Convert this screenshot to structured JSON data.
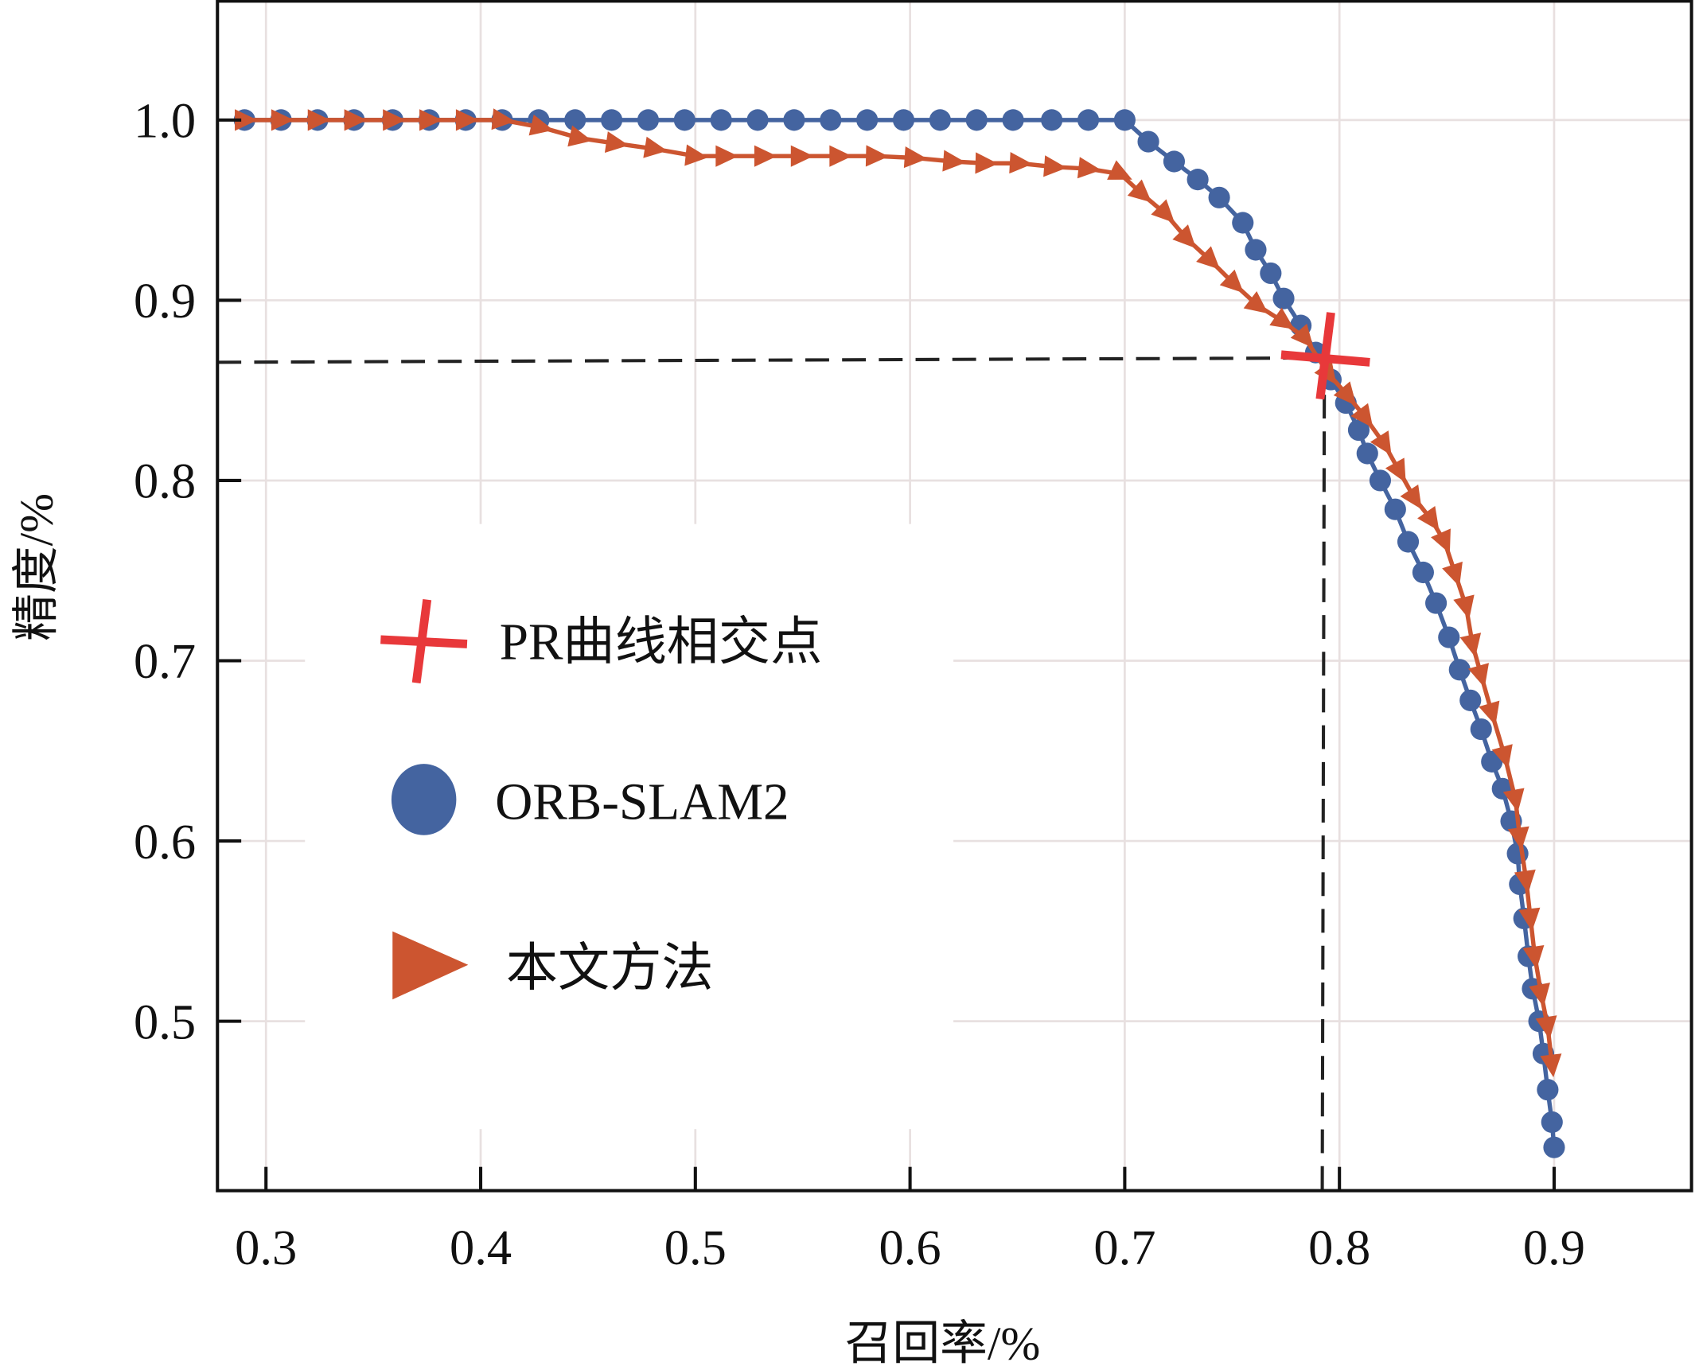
{
  "chart_data": {
    "type": "line",
    "title": "",
    "xlabel": "召回率/%",
    "ylabel": "精度/%",
    "xlim": [
      0.2774,
      0.964
    ],
    "ylim": [
      0.406,
      1.066
    ],
    "xticks": [
      0.3,
      0.4,
      0.5,
      0.6,
      0.7,
      0.8,
      0.9
    ],
    "xtick_labels": [
      "0.3",
      "0.4",
      "0.5",
      "0.6",
      "0.7",
      "0.8",
      "0.9"
    ],
    "yticks": [
      0.5,
      0.6,
      0.7,
      0.8,
      0.9,
      1.0
    ],
    "ytick_labels": [
      "0.5",
      "0.6",
      "0.7",
      "0.8",
      "0.9",
      "1.0"
    ],
    "grid": true,
    "legend_position": "center-left",
    "legend": [
      "PR曲线相交点",
      "ORB-SLAM2",
      "本文方法"
    ],
    "colors": {
      "intersection": "#e8383a",
      "orb": "#4464a0",
      "ours": "#cc5530",
      "dash": "#222222",
      "grid": "#e8e0e0"
    },
    "intersection": {
      "x": 0.793,
      "y": 0.868
    },
    "series": [
      {
        "name": "ORB-SLAM2",
        "marker": "circle",
        "x": [
          0.29,
          0.307,
          0.324,
          0.341,
          0.359,
          0.376,
          0.393,
          0.41,
          0.427,
          0.444,
          0.461,
          0.478,
          0.495,
          0.512,
          0.529,
          0.546,
          0.563,
          0.58,
          0.597,
          0.614,
          0.631,
          0.648,
          0.666,
          0.683,
          0.7,
          0.711,
          0.723,
          0.734,
          0.744,
          0.755,
          0.761,
          0.768,
          0.774,
          0.782,
          0.789,
          0.796,
          0.803,
          0.809,
          0.813,
          0.819,
          0.826,
          0.832,
          0.839,
          0.845,
          0.851,
          0.856,
          0.861,
          0.866,
          0.871,
          0.876,
          0.88,
          0.883,
          0.884,
          0.886,
          0.888,
          0.89,
          0.893,
          0.895,
          0.897,
          0.899,
          0.9
        ],
        "y": [
          1,
          1,
          1,
          1,
          1,
          1,
          1,
          1,
          1,
          1,
          1,
          1,
          1,
          1,
          1,
          1,
          1,
          1,
          1,
          1,
          1,
          1,
          1,
          1,
          1,
          0.988,
          0.977,
          0.967,
          0.957,
          0.943,
          0.928,
          0.915,
          0.901,
          0.886,
          0.871,
          0.856,
          0.843,
          0.828,
          0.815,
          0.8,
          0.784,
          0.766,
          0.749,
          0.732,
          0.713,
          0.695,
          0.678,
          0.662,
          0.644,
          0.629,
          0.611,
          0.593,
          0.576,
          0.557,
          0.536,
          0.518,
          0.5,
          0.482,
          0.462,
          0.444,
          0.43
        ]
      },
      {
        "name": "本文方法",
        "marker": "triangle",
        "x": [
          0.29,
          0.307,
          0.324,
          0.341,
          0.359,
          0.376,
          0.393,
          0.41,
          0.428,
          0.446,
          0.463,
          0.481,
          0.5,
          0.514,
          0.532,
          0.549,
          0.567,
          0.584,
          0.602,
          0.62,
          0.635,
          0.651,
          0.667,
          0.683,
          0.698,
          0.708,
          0.719,
          0.729,
          0.74,
          0.751,
          0.762,
          0.774,
          0.784,
          0.795,
          0.804,
          0.812,
          0.821,
          0.828,
          0.835,
          0.843,
          0.849,
          0.854,
          0.859,
          0.862,
          0.866,
          0.871,
          0.877,
          0.882,
          0.884,
          0.887,
          0.889,
          0.891,
          0.894,
          0.897,
          0.899
        ],
        "y": [
          1,
          1,
          1,
          1,
          1,
          1,
          1,
          1,
          0.996,
          0.99,
          0.987,
          0.984,
          0.98,
          0.98,
          0.98,
          0.98,
          0.98,
          0.98,
          0.979,
          0.977,
          0.976,
          0.976,
          0.974,
          0.973,
          0.97,
          0.959,
          0.948,
          0.934,
          0.922,
          0.909,
          0.897,
          0.888,
          0.879,
          0.859,
          0.847,
          0.835,
          0.82,
          0.805,
          0.79,
          0.778,
          0.766,
          0.748,
          0.73,
          0.709,
          0.692,
          0.671,
          0.647,
          0.623,
          0.602,
          0.578,
          0.557,
          0.536,
          0.515,
          0.497,
          0.476
        ]
      }
    ]
  }
}
